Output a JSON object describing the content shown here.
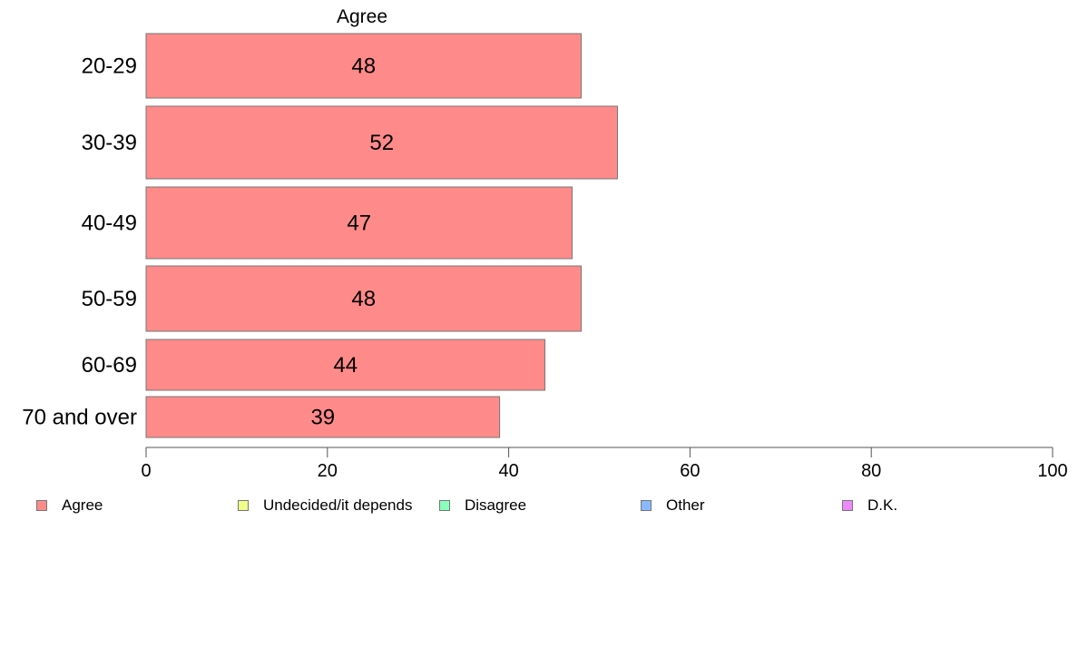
{
  "chart_data": {
    "type": "bar",
    "orientation": "horizontal",
    "title": "Agree",
    "categories": [
      "20-29",
      "30-39",
      "40-49",
      "50-59",
      "60-69",
      "70 and over"
    ],
    "series": [
      {
        "name": "Agree",
        "color": "#ff8a8a",
        "values": [
          48,
          52,
          47,
          48,
          44,
          39
        ]
      }
    ],
    "xlim": [
      0,
      100
    ],
    "xticks": [
      0,
      20,
      40,
      60,
      80,
      100
    ],
    "grid": false,
    "legend_position": "bottom"
  },
  "legend": [
    {
      "label": "Agree",
      "color": "#ff8a8a"
    },
    {
      "label": "Undecided/it depends",
      "color": "#f0ff88"
    },
    {
      "label": "Disagree",
      "color": "#88ffbb"
    },
    {
      "label": "Other",
      "color": "#88b8ff"
    },
    {
      "label": "D.K.",
      "color": "#ee88ff"
    }
  ]
}
